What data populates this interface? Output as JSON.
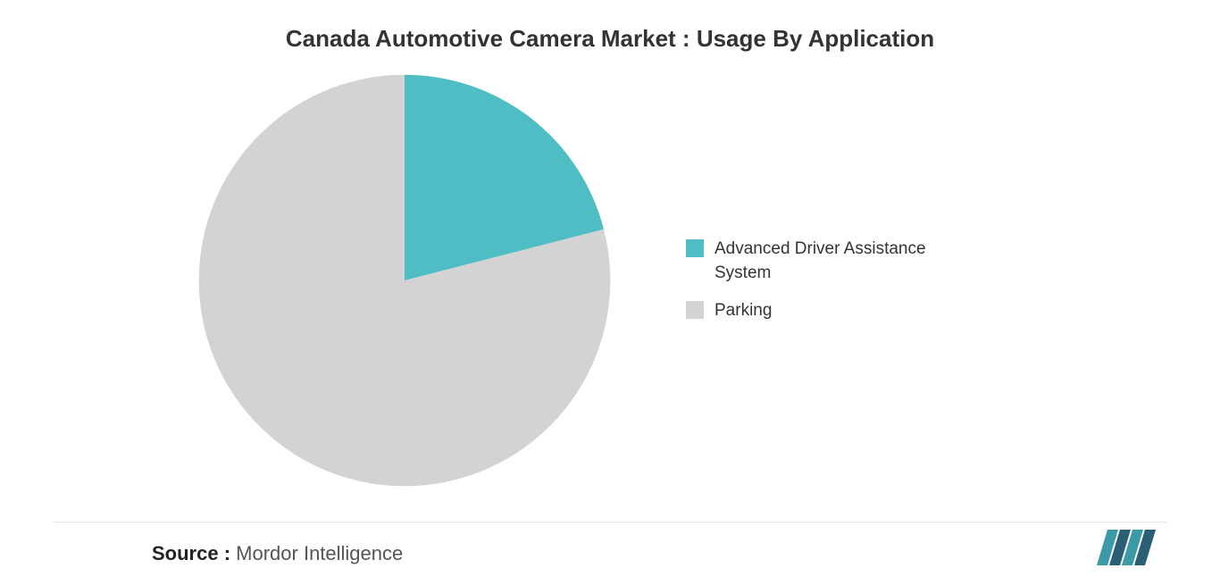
{
  "chart": {
    "type": "pie",
    "title": "Canada Automotive Camera Market : Usage By Application",
    "title_fontsize": 26,
    "title_color": "#333333",
    "background_color": "#ffffff",
    "diameter": 470,
    "slices": [
      {
        "label": "Advanced Driver Assistance System",
        "value": 21,
        "color": "#4fbdc4",
        "start_angle": 0,
        "end_angle": 75.6
      },
      {
        "label": "Parking",
        "value": 79,
        "color": "#d3d3d3",
        "start_angle": 75.6,
        "end_angle": 360
      }
    ],
    "legend": {
      "position": "right",
      "fontsize": 19,
      "color": "#333333",
      "swatch_size": 20
    }
  },
  "footer": {
    "source_label": "Source :",
    "source_value": "Mordor Intelligence",
    "source_fontsize": 22
  },
  "logo": {
    "name": "MI",
    "color1": "#3c9aa8",
    "color2": "#2b5f75",
    "width": 68,
    "height": 42
  }
}
